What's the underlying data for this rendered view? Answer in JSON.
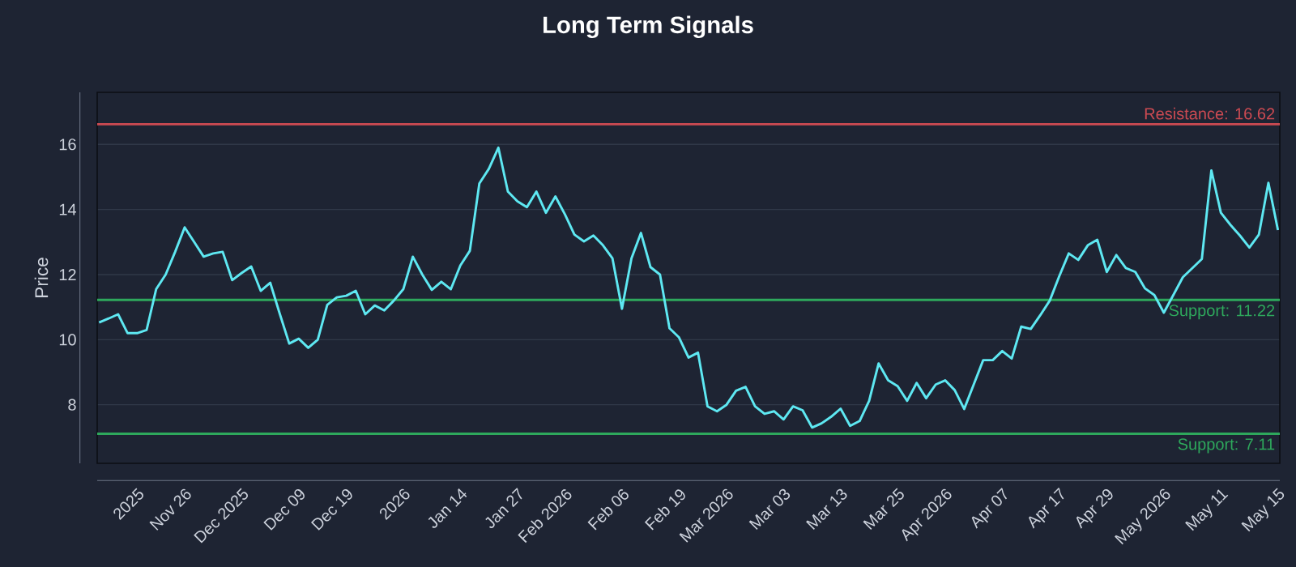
{
  "chart_data": {
    "type": "line",
    "title": "Long Term Signals",
    "ylabel": "Price",
    "categories": [
      null,
      null,
      null,
      null,
      "2025",
      null,
      null,
      null,
      null,
      "Nov 26",
      null,
      null,
      null,
      null,
      null,
      "Dec 2025",
      null,
      null,
      null,
      null,
      null,
      "Dec 09",
      null,
      null,
      null,
      null,
      "Dec 19",
      null,
      null,
      null,
      null,
      null,
      "2026",
      null,
      null,
      null,
      null,
      null,
      "Jan 14",
      null,
      null,
      null,
      null,
      null,
      "Jan 27",
      null,
      null,
      null,
      null,
      "Feb 2026",
      null,
      null,
      null,
      null,
      null,
      "Feb 06",
      null,
      null,
      null,
      null,
      null,
      "Feb 19",
      null,
      null,
      null,
      null,
      "Mar 2026",
      null,
      null,
      null,
      null,
      null,
      "Mar 03",
      null,
      null,
      null,
      null,
      null,
      "Mar 13",
      null,
      null,
      null,
      null,
      null,
      "Mar 25",
      null,
      null,
      null,
      null,
      "Apr 2026",
      null,
      null,
      null,
      null,
      null,
      "Apr 07",
      null,
      null,
      null,
      null,
      null,
      "Apr 17",
      null,
      null,
      null,
      null,
      "Apr 29",
      null,
      null,
      null,
      null,
      null,
      "May 2026",
      null,
      null,
      null,
      null,
      null,
      "May 11",
      null,
      null,
      null,
      null,
      null,
      "May 15"
    ],
    "series": [
      {
        "color": "#5ee8f2",
        "values": [
          10.53,
          10.65,
          10.78,
          10.2,
          10.2,
          10.3,
          11.55,
          12.0,
          12.7,
          13.45,
          13.0,
          12.55,
          12.65,
          12.7,
          11.83,
          12.05,
          12.25,
          11.5,
          11.75,
          10.8,
          9.88,
          10.03,
          9.75,
          10.0,
          11.07,
          11.3,
          11.35,
          11.5,
          10.78,
          11.05,
          10.9,
          11.2,
          11.55,
          12.55,
          12.0,
          11.53,
          11.78,
          11.55,
          12.28,
          12.73,
          14.8,
          15.25,
          15.9,
          14.55,
          14.25,
          14.07,
          14.55,
          13.9,
          14.4,
          13.85,
          13.23,
          13.02,
          13.2,
          12.9,
          12.5,
          10.95,
          12.5,
          13.28,
          12.23,
          12.0,
          10.35,
          10.07,
          9.45,
          9.6,
          7.95,
          7.8,
          8.0,
          8.43,
          8.55,
          7.95,
          7.72,
          7.8,
          7.55,
          7.95,
          7.83,
          7.3,
          7.43,
          7.63,
          7.88,
          7.35,
          7.5,
          8.12,
          9.27,
          8.75,
          8.57,
          8.12,
          8.67,
          8.2,
          8.62,
          8.75,
          8.45,
          7.87,
          8.62,
          9.37,
          9.37,
          9.65,
          9.42,
          10.4,
          10.33,
          10.75,
          11.2,
          11.95,
          12.65,
          12.45,
          12.9,
          13.07,
          12.08,
          12.6,
          12.2,
          12.08,
          11.58,
          11.37,
          10.83,
          11.37,
          11.92,
          12.2,
          12.48,
          15.2,
          13.9,
          13.53,
          13.2,
          12.83,
          13.23,
          14.82,
          13.37
        ]
      }
    ],
    "ylim": [
      6.2,
      17.6
    ],
    "yticks": [
      8,
      10,
      12,
      14,
      16
    ],
    "grid": "y",
    "marker": "none",
    "line_style": "solid",
    "ref_lines": [
      {
        "axis": "y",
        "value": 16.62,
        "label": "Resistance: 16.62",
        "color": "#cc4a52"
      },
      {
        "axis": "y",
        "value": 11.22,
        "label": "Support: 11.22",
        "color": "#2ea85c"
      },
      {
        "axis": "y",
        "value": 7.11,
        "label": "Support: 7.11",
        "color": "#2ea85c"
      }
    ]
  }
}
